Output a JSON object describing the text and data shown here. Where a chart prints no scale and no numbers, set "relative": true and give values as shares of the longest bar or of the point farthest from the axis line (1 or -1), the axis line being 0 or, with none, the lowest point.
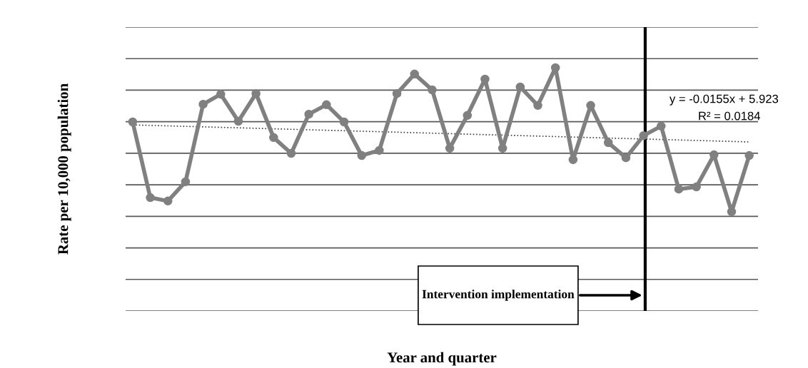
{
  "chart_data": {
    "type": "line",
    "relative": true,
    "xlabel": "Year and quarter",
    "ylabel": "Rate per 10,000 population",
    "categories": [
      null,
      null,
      null,
      null,
      null,
      null,
      null,
      null,
      null,
      null,
      null,
      null,
      null,
      null,
      null,
      null,
      null,
      null,
      null,
      null,
      null,
      null,
      null,
      null,
      null,
      null,
      null,
      null,
      null,
      null,
      null,
      null,
      null,
      null,
      null,
      null
    ],
    "grid": "y",
    "marker": "circle",
    "line_style": "solid",
    "series": [
      {
        "color": "#808080",
        "values": [
          0.777,
          0.466,
          0.452,
          0.531,
          0.85,
          0.891,
          0.78,
          0.894,
          0.713,
          0.648,
          0.809,
          0.848,
          0.777,
          0.639,
          0.66,
          0.894,
          0.974,
          0.909,
          0.669,
          0.804,
          0.953,
          0.669,
          0.921,
          0.845,
          1.0,
          0.622,
          0.845,
          0.692,
          0.63,
          0.721,
          0.76,
          0.501,
          0.51,
          0.642,
          0.408,
          0.639
        ]
      },
      {
        "color": "#404040",
        "line_style": "dotted",
        "marker": "none",
        "values": [
          0.765,
          0.763,
          0.761,
          0.759,
          0.757,
          0.755,
          0.753,
          0.751,
          0.749,
          0.747,
          0.745,
          0.743,
          0.741,
          0.739,
          0.737,
          0.735,
          0.733,
          0.731,
          0.729,
          0.727,
          0.725,
          0.723,
          0.721,
          0.719,
          0.717,
          0.715,
          0.713,
          0.711,
          0.709,
          0.707,
          0.705,
          0.703,
          0.701,
          0.699,
          0.697,
          0.695
        ]
      }
    ],
    "annotations": [
      "Intervention implementation",
      "y = -0.0155x + 5.923",
      "R² = 0.0184"
    ]
  }
}
